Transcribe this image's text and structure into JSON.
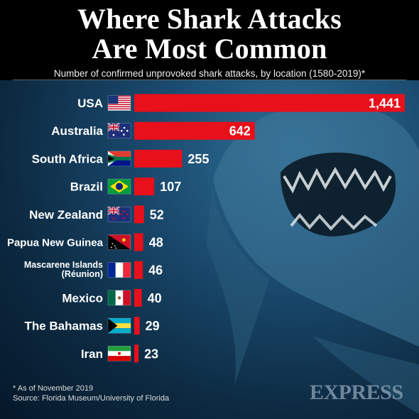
{
  "title_line1": "Where Shark Attacks",
  "title_line2": "Are Most Common",
  "subtitle": "Number of confirmed unprovoked shark attacks, by location (1580-2019)*",
  "footnote": "* As of November 2019",
  "source": "Source: Florida Museum/University of Florida",
  "brand": "EXPRESS",
  "colors": {
    "bar": "#e8101a",
    "background": "#0d3352"
  },
  "chart_data": {
    "type": "bar",
    "orientation": "horizontal",
    "categories": [
      "USA",
      "Australia",
      "South Africa",
      "Brazil",
      "New Zealand",
      "Papua New Guinea",
      "Mascarene Islands (Réunion)",
      "Mexico",
      "The Bahamas",
      "Iran"
    ],
    "category_lines": [
      [
        "USA"
      ],
      [
        "Australia"
      ],
      [
        "South Africa"
      ],
      [
        "Brazil"
      ],
      [
        "New Zealand"
      ],
      [
        "Papua New Guinea"
      ],
      [
        "Mascarene Islands",
        "(Réunion)"
      ],
      [
        "Mexico"
      ],
      [
        "The Bahamas"
      ],
      [
        "Iran"
      ]
    ],
    "flags": [
      "usa-flag-icon",
      "australia-flag-icon",
      "south-africa-flag-icon",
      "brazil-flag-icon",
      "new-zealand-flag-icon",
      "papua-new-guinea-flag-icon",
      "france-flag-icon",
      "mexico-flag-icon",
      "bahamas-flag-icon",
      "iran-flag-icon"
    ],
    "values": [
      1441,
      642,
      255,
      107,
      52,
      48,
      46,
      40,
      29,
      23
    ],
    "value_labels": [
      "1,441",
      "642",
      "255",
      "107",
      "52",
      "48",
      "46",
      "40",
      "29",
      "23"
    ]
  }
}
